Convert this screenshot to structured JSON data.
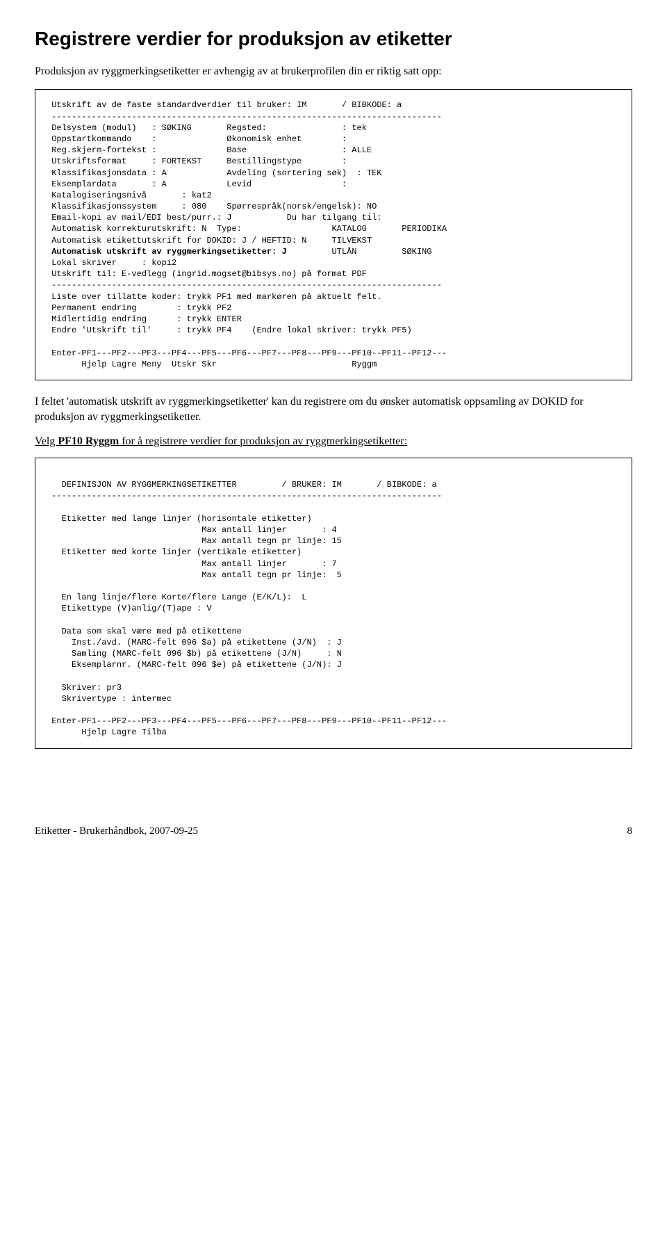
{
  "heading": "Registrere verdier for produksjon av etiketter",
  "intro": "Produksjon av ryggmerkingsetiketter er avhengig av at brukerprofilen din er riktig satt opp:",
  "term1": {
    "l01": " Utskrift av de faste standardverdier til bruker: IM       / BIBKODE: a",
    "l02": " ------------------------------------------------------------------------------",
    "l03": " Delsystem (modul)   : SØKING       Regsted:               : tek",
    "l04": " Oppstartkommando    :              Økonomisk enhet        :",
    "l05": " Reg.skjerm-fortekst :              Base                   : ALLE",
    "l06": " Utskriftsformat     : FORTEKST     Bestillingstype        :",
    "l07": " Klassifikasjonsdata : A            Avdeling (sortering søk)  : TEK",
    "l08": " Eksemplardata       : A            Levid                  :",
    "l09": " Katalogiseringsnivå       : kat2",
    "l10": " Klassifikasjonssystem     : 080    Spørrespråk(norsk/engelsk): NO",
    "l11": " Email-kopi av mail/EDI best/purr.: J           Du har tilgang til:",
    "l12": " Automatisk korrekturutskrift: N  Type:                  KATALOG       PERIODIKA",
    "l13": " Automatisk etikettutskrift for DOKID: J / HEFTID: N     TILVEKST",
    "l14a": " Automatisk utskrift av ryggmerkingsetiketter: J",
    "l14b": "         UTLÅN         SØKING",
    "l15": " Lokal skriver     : kopi2",
    "l16": " Utskrift til: E-vedlegg (ingrid.mogset@bibsys.no) på format PDF",
    "l17": " ------------------------------------------------------------------------------",
    "l18": " Liste over tillatte koder: trykk PF1 med markøren på aktuelt felt.",
    "l19": " Permanent endring        : trykk PF2",
    "l20": " Midlertidig endring      : trykk ENTER",
    "l21": " Endre 'Utskrift til'     : trykk PF4    (Endre lokal skriver: trykk PF5)",
    "l22": "",
    "l23": " Enter-PF1---PF2---PF3---PF4---PF5---PF6---PF7---PF8---PF9---PF10--PF11--PF12---",
    "l24": "       Hjelp Lagre Meny  Utskr Skr                           Ryggm"
  },
  "mid1": "I feltet 'automatisk utskrift av ryggmerkingsetiketter' kan du registrere om du ønsker automatisk oppsamling av DOKID for produksjon av ryggmerkingsetiketter.",
  "mid2a": "Velg ",
  "mid2b": "PF10 Ryggm",
  "mid2c": " for å registrere verdier for produksjon av ryggmerkingsetiketter:",
  "term2": {
    "l00": "",
    "l01": "   DEFINISJON AV RYGGMERKINGSETIKETTER         / BRUKER: IM       / BIBKODE: a",
    "l02": " ------------------------------------------------------------------------------",
    "l03": "",
    "l04": "   Etiketter med lange linjer (horisontale etiketter)",
    "l05": "                               Max antall linjer       : 4",
    "l06": "                               Max antall tegn pr linje: 15",
    "l07": "   Etiketter med korte linjer (vertikale etiketter)",
    "l08": "                               Max antall linjer       : 7",
    "l09": "                               Max antall tegn pr linje:  5",
    "l10": "",
    "l11": "   En lang linje/flere Korte/flere Lange (E/K/L):  L",
    "l12": "   Etikettype (V)anlig/(T)ape : V",
    "l13": "",
    "l14": "   Data som skal være med på etikettene",
    "l15": "     Inst./avd. (MARC-felt 096 $a) på etikettene (J/N)  : J",
    "l16": "     Samling (MARC-felt 096 $b) på etikettene (J/N)     : N",
    "l17": "     Eksemplarnr. (MARC-felt 096 $e) på etikettene (J/N): J",
    "l18": "",
    "l19": "   Skriver: pr3",
    "l20": "   Skrivertype : intermec",
    "l21": "",
    "l22": " Enter-PF1---PF2---PF3---PF4---PF5---PF6---PF7---PF8---PF9---PF10--PF11--PF12---",
    "l23": "       Hjelp Lagre Tilba"
  },
  "footer_left": "Etiketter - Brukerhåndbok, 2007-09-25",
  "footer_page": "8"
}
